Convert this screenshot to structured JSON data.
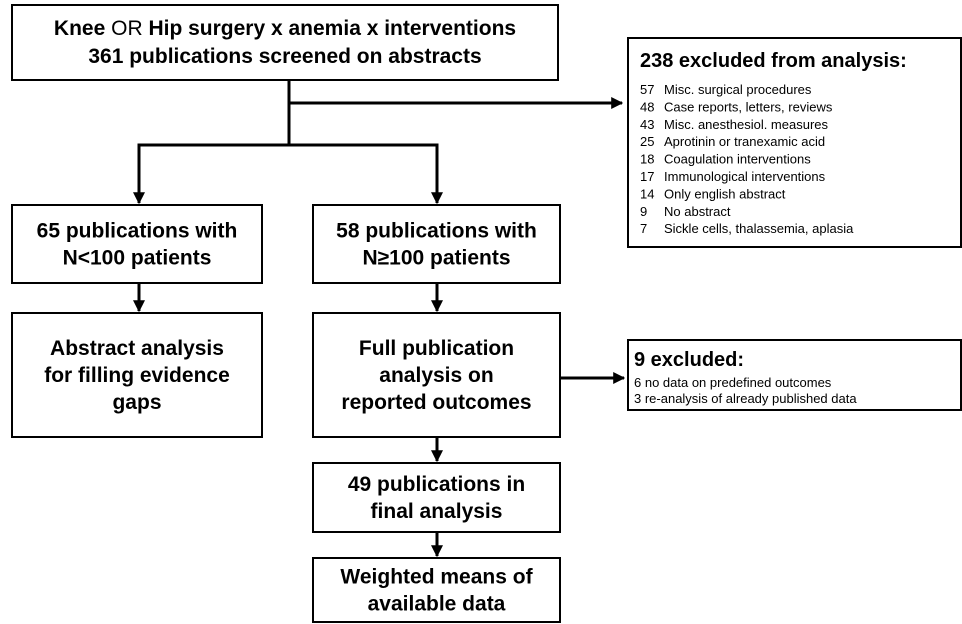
{
  "header": {
    "line1": {
      "part1": "Knee",
      "part2": "OR",
      "part3": "Hip surgery x anemia x interventions"
    },
    "line2": "361 publications screened on abstracts"
  },
  "nodes": [
    {
      "lines": [
        "65 publications with",
        "N<100 patients"
      ]
    },
    {
      "lines": [
        "58 publications with",
        "N≥100 patients"
      ]
    },
    {
      "lines": [
        "Abstract  analysis",
        "for filling evidence",
        "gaps"
      ]
    },
    {
      "lines": [
        "Full publication",
        "analysis on",
        "reported outcomes"
      ]
    },
    {
      "lines": [
        "49 publications in",
        "final analysis"
      ]
    },
    {
      "lines": [
        "Weighted means of",
        "available data"
      ]
    }
  ],
  "excluded_abstracts": {
    "title": "238 excluded from analysis:",
    "items": [
      {
        "count": 57,
        "reason": "Misc. surgical procedures"
      },
      {
        "count": 48,
        "reason": "Case reports, letters, reviews"
      },
      {
        "count": 43,
        "reason": "Misc. anesthesiol. measures"
      },
      {
        "count": 25,
        "reason": "Aprotinin or tranexamic acid"
      },
      {
        "count": 18,
        "reason": "Coagulation interventions"
      },
      {
        "count": 17,
        "reason": "Immunological interventions"
      },
      {
        "count": 14,
        "reason": "Only english abstract"
      },
      {
        "count": 9,
        "reason": "No abstract"
      },
      {
        "count": 7,
        "reason": "Sickle cells, thalassemia, aplasia"
      }
    ]
  },
  "excluded_full": {
    "title": "9 excluded:",
    "items": [
      "6 no data on predefined outcomes",
      "3 re-analysis of already published data"
    ]
  }
}
